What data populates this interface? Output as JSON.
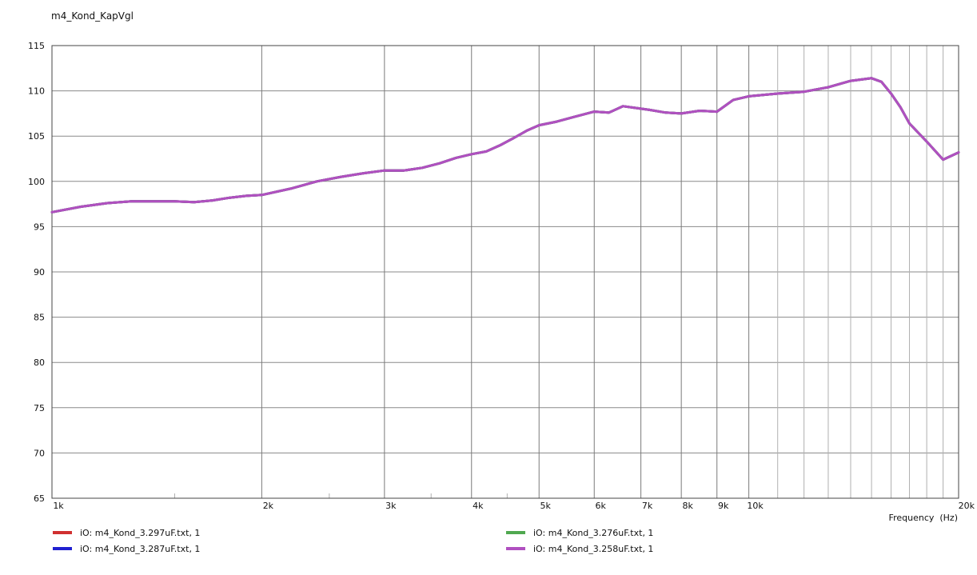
{
  "chart_data": {
    "type": "line",
    "title": "m4_Kond_KapVgl",
    "xlabel": "Frequency  (Hz)",
    "ylabel": "",
    "x_scale": "log",
    "xlim": [
      1000,
      20000
    ],
    "ylim": [
      65,
      115
    ],
    "y_ticks": [
      115,
      110,
      105,
      100,
      95,
      90,
      85,
      80,
      75,
      70,
      65
    ],
    "x_ticks": [
      {
        "value": 1000,
        "label": "1k"
      },
      {
        "value": 2000,
        "label": "2k"
      },
      {
        "value": 3000,
        "label": "3k"
      },
      {
        "value": 4000,
        "label": "4k"
      },
      {
        "value": 5000,
        "label": "5k"
      },
      {
        "value": 6000,
        "label": "6k"
      },
      {
        "value": 7000,
        "label": "7k"
      },
      {
        "value": 8000,
        "label": "8k"
      },
      {
        "value": 9000,
        "label": "9k"
      },
      {
        "value": 10000,
        "label": "10k"
      },
      {
        "value": 20000,
        "label": "20k"
      }
    ],
    "grid": true,
    "legend_position": "bottom",
    "x": [
      1000,
      1100,
      1200,
      1300,
      1400,
      1500,
      1600,
      1700,
      1800,
      1900,
      2000,
      2200,
      2400,
      2600,
      2800,
      3000,
      3200,
      3400,
      3600,
      3800,
      4000,
      4200,
      4400,
      4600,
      4800,
      5000,
      5300,
      5600,
      6000,
      6300,
      6600,
      6900,
      7200,
      7600,
      8000,
      8500,
      9000,
      9500,
      10000,
      11000,
      12000,
      13000,
      14000,
      15000,
      15500,
      16000,
      16500,
      17000,
      18000,
      19000,
      20000
    ],
    "series": [
      {
        "name": "iO: m4_Kond_3.297uF.txt, 1",
        "color": "#d03030",
        "values": [
          96.6,
          97.2,
          97.6,
          97.8,
          97.8,
          97.8,
          97.7,
          97.9,
          98.2,
          98.4,
          98.5,
          99.2,
          100.0,
          100.5,
          100.9,
          101.2,
          101.2,
          101.5,
          102.0,
          102.6,
          103.0,
          103.3,
          104.0,
          104.8,
          105.6,
          106.2,
          106.6,
          107.1,
          107.7,
          107.6,
          108.3,
          108.1,
          107.9,
          107.6,
          107.5,
          107.8,
          107.7,
          109.0,
          109.4,
          109.7,
          109.9,
          110.4,
          111.1,
          111.4,
          111.0,
          109.7,
          108.2,
          106.4,
          104.4,
          102.4,
          103.2
        ]
      },
      {
        "name": "iO: m4_Kond_3.287uF.txt, 1",
        "color": "#2020d0",
        "values": [
          96.6,
          97.2,
          97.6,
          97.8,
          97.8,
          97.8,
          97.7,
          97.9,
          98.2,
          98.4,
          98.5,
          99.2,
          100.0,
          100.5,
          100.9,
          101.2,
          101.2,
          101.5,
          102.0,
          102.6,
          103.0,
          103.3,
          104.0,
          104.8,
          105.6,
          106.2,
          106.6,
          107.1,
          107.7,
          107.6,
          108.3,
          108.1,
          107.9,
          107.6,
          107.5,
          107.8,
          107.7,
          109.0,
          109.4,
          109.7,
          109.9,
          110.4,
          111.1,
          111.4,
          111.0,
          109.7,
          108.2,
          106.4,
          104.4,
          102.4,
          103.2
        ]
      },
      {
        "name": "iO: m4_Kond_3.276uF.txt, 1",
        "color": "#50a850",
        "values": [
          96.6,
          97.2,
          97.6,
          97.8,
          97.8,
          97.8,
          97.7,
          97.9,
          98.2,
          98.4,
          98.5,
          99.2,
          100.0,
          100.5,
          100.9,
          101.2,
          101.2,
          101.5,
          102.0,
          102.6,
          103.0,
          103.3,
          104.0,
          104.8,
          105.6,
          106.2,
          106.6,
          107.1,
          107.7,
          107.6,
          108.3,
          108.1,
          107.9,
          107.6,
          107.5,
          107.8,
          107.7,
          109.0,
          109.4,
          109.7,
          109.9,
          110.4,
          111.1,
          111.4,
          111.0,
          109.7,
          108.2,
          106.4,
          104.4,
          102.4,
          103.2
        ]
      },
      {
        "name": "iO: m4_Kond_3.258uF.txt, 1",
        "color": "#b050c0",
        "values": [
          96.6,
          97.2,
          97.6,
          97.8,
          97.8,
          97.8,
          97.7,
          97.9,
          98.2,
          98.4,
          98.5,
          99.2,
          100.0,
          100.5,
          100.9,
          101.2,
          101.2,
          101.5,
          102.0,
          102.6,
          103.0,
          103.3,
          104.0,
          104.8,
          105.6,
          106.2,
          106.6,
          107.1,
          107.7,
          107.6,
          108.3,
          108.1,
          107.9,
          107.6,
          107.5,
          107.8,
          107.7,
          109.0,
          109.4,
          109.7,
          109.9,
          110.4,
          111.1,
          111.4,
          111.0,
          109.7,
          108.2,
          106.4,
          104.4,
          102.4,
          103.2
        ]
      }
    ]
  }
}
